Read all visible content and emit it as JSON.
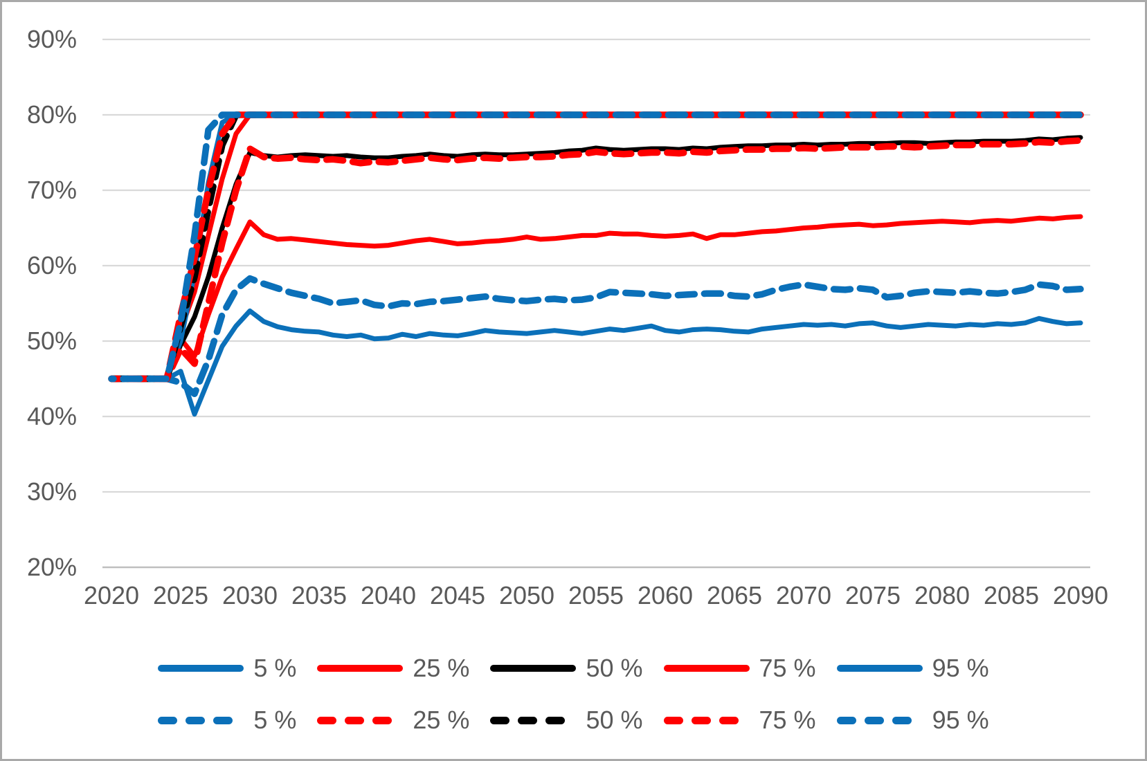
{
  "chart_data": {
    "type": "line",
    "title": "",
    "xlabel": "",
    "ylabel": "",
    "grid": true,
    "y_format": "percent",
    "ylim": [
      20,
      90
    ],
    "xlim": [
      2020,
      2090
    ],
    "axes": {
      "y_tick_labels": [
        "90%",
        "80%",
        "70%",
        "60%",
        "50%",
        "40%",
        "30%",
        "20%"
      ],
      "y_tick_values": [
        90,
        80,
        70,
        60,
        50,
        40,
        30,
        20
      ],
      "x_tick_labels": [
        "2020",
        "2025",
        "2030",
        "2035",
        "2040",
        "2045",
        "2050",
        "2055",
        "2060",
        "2065",
        "2070",
        "2075",
        "2080",
        "2085",
        "2090"
      ],
      "x_tick_values": [
        2020,
        2025,
        2030,
        2035,
        2040,
        2045,
        2050,
        2055,
        2060,
        2065,
        2070,
        2075,
        2080,
        2085,
        2090
      ]
    },
    "x_years_start": 2020,
    "x_years_end": 2090,
    "x_step": 1,
    "series": [
      {
        "name": "5 % solid",
        "percentile": "5 %",
        "style": "solid",
        "color": "#0B70B9",
        "values": [
          45,
          45,
          45,
          45,
          45,
          46,
          40.3,
          44.8,
          49.3,
          52,
          54,
          52.6,
          51.9,
          51.5,
          51.3,
          51.2,
          50.8,
          50.6,
          50.8,
          50.3,
          50.4,
          50.9,
          50.6,
          51,
          50.8,
          50.7,
          51,
          51.4,
          51.2,
          51.1,
          51,
          51.2,
          51.4,
          51.2,
          51,
          51.3,
          51.6,
          51.4,
          51.7,
          52,
          51.4,
          51.2,
          51.5,
          51.6,
          51.5,
          51.3,
          51.2,
          51.6,
          51.8,
          52,
          52.2,
          52.1,
          52.2,
          52,
          52.3,
          52.4,
          52,
          51.8,
          52,
          52.2,
          52.1,
          52,
          52.2,
          52.1,
          52.3,
          52.2,
          52.4,
          53,
          52.6,
          52.3,
          52.4
        ]
      },
      {
        "name": "25 % solid",
        "percentile": "25 %",
        "style": "solid",
        "color": "#FF0000",
        "values": [
          45,
          45,
          45,
          45,
          45,
          50.3,
          48,
          53.5,
          58.5,
          62.2,
          65.8,
          64.1,
          63.5,
          63.6,
          63.4,
          63.2,
          63,
          62.8,
          62.7,
          62.6,
          62.7,
          63,
          63.3,
          63.5,
          63.2,
          62.9,
          63,
          63.2,
          63.3,
          63.5,
          63.8,
          63.5,
          63.6,
          63.8,
          64,
          64,
          64.3,
          64.2,
          64.2,
          64,
          63.9,
          64,
          64.2,
          63.6,
          64.1,
          64.1,
          64.3,
          64.5,
          64.6,
          64.8,
          65,
          65.1,
          65.3,
          65.4,
          65.5,
          65.3,
          65.4,
          65.6,
          65.7,
          65.8,
          65.9,
          65.8,
          65.7,
          65.9,
          66,
          65.9,
          66.1,
          66.3,
          66.2,
          66.4,
          66.5
        ]
      },
      {
        "name": "50 % solid",
        "percentile": "50 %",
        "style": "solid",
        "color": "#000000",
        "values": [
          45,
          45,
          45,
          45,
          45,
          49.5,
          53.2,
          58.5,
          65,
          70.8,
          75,
          74.6,
          74.4,
          74.6,
          74.7,
          74.6,
          74.5,
          74.6,
          74.4,
          74.3,
          74.3,
          74.5,
          74.6,
          74.8,
          74.6,
          74.5,
          74.7,
          74.8,
          74.7,
          74.7,
          74.8,
          74.9,
          75,
          75.2,
          75.3,
          75.6,
          75.4,
          75.3,
          75.4,
          75.5,
          75.5,
          75.4,
          75.6,
          75.5,
          75.7,
          75.8,
          75.9,
          75.9,
          76,
          76,
          76.1,
          76,
          76.1,
          76.1,
          76.2,
          76.2,
          76.2,
          76.3,
          76.3,
          76.2,
          76.3,
          76.4,
          76.4,
          76.5,
          76.5,
          76.5,
          76.6,
          76.8,
          76.7,
          76.9,
          77
        ]
      },
      {
        "name": "75 % solid",
        "percentile": "75 %",
        "style": "solid",
        "color": "#FF0000",
        "values": [
          45,
          45,
          45,
          45,
          45,
          51.5,
          56.5,
          64,
          71.5,
          77.5,
          80,
          80,
          80,
          80,
          80,
          80,
          80,
          80,
          80,
          80,
          80,
          80,
          80,
          80,
          80,
          80,
          80,
          80,
          80,
          80,
          80,
          80,
          80,
          80,
          80,
          80,
          80,
          80,
          80,
          80,
          80,
          80,
          80,
          80,
          80,
          80,
          80,
          80,
          80,
          80,
          80,
          80,
          80,
          80,
          80,
          80,
          80,
          80,
          80,
          80,
          80,
          80,
          80,
          80,
          80,
          80,
          80,
          80,
          80,
          80,
          80
        ]
      },
      {
        "name": "95 % solid",
        "percentile": "95 %",
        "style": "solid",
        "color": "#0B70B9",
        "values": [
          45,
          45,
          45,
          45,
          45,
          50,
          59,
          71,
          79,
          80,
          80,
          80,
          80,
          80,
          80,
          80,
          80,
          80,
          80,
          80,
          80,
          80,
          80,
          80,
          80,
          80,
          80,
          80,
          80,
          80,
          80,
          80,
          80,
          80,
          80,
          80,
          80,
          80,
          80,
          80,
          80,
          80,
          80,
          80,
          80,
          80,
          80,
          80,
          80,
          80,
          80,
          80,
          80,
          80,
          80,
          80,
          80,
          80,
          80,
          80,
          80,
          80,
          80,
          80,
          80,
          80,
          80,
          80,
          80,
          80,
          80
        ]
      },
      {
        "name": "5 % dashed",
        "percentile": "5 %",
        "style": "dashed",
        "color": "#0B70B9",
        "values": [
          45,
          45,
          45,
          45,
          45,
          44.5,
          43,
          47.5,
          53.5,
          56.8,
          58.3,
          57.6,
          57,
          56.4,
          56,
          55.6,
          55,
          55.2,
          55.4,
          54.8,
          54.6,
          55,
          54.9,
          55.2,
          55.3,
          55.5,
          55.7,
          55.9,
          55.6,
          55.4,
          55.3,
          55.5,
          55.6,
          55.4,
          55.5,
          55.8,
          56.5,
          56.4,
          56.3,
          56.2,
          56,
          56.1,
          56.2,
          56.3,
          56.3,
          56,
          55.9,
          56.2,
          56.8,
          57.2,
          57.5,
          57.2,
          56.9,
          56.8,
          57,
          56.8,
          55.8,
          56,
          56.4,
          56.6,
          56.5,
          56.4,
          56.6,
          56.4,
          56.3,
          56.5,
          56.8,
          57.5,
          57.3,
          56.8,
          56.9
        ]
      },
      {
        "name": "25 % dashed",
        "percentile": "25 %",
        "style": "dashed",
        "color": "#FF0000",
        "values": [
          45,
          45,
          45,
          45,
          45,
          49,
          47,
          55,
          63,
          70,
          75.5,
          74.4,
          74.2,
          74.3,
          74.1,
          74,
          74.1,
          73.9,
          73.6,
          73.8,
          73.7,
          73.9,
          74.1,
          74.3,
          74.1,
          74,
          74.2,
          74.3,
          74.2,
          74.3,
          74.4,
          74.4,
          74.5,
          74.7,
          74.8,
          75.1,
          74.9,
          74.8,
          74.9,
          75,
          75,
          74.9,
          75.1,
          75,
          75.2,
          75.3,
          75.4,
          75.4,
          75.5,
          75.5,
          75.6,
          75.5,
          75.6,
          75.7,
          75.7,
          75.7,
          75.8,
          75.8,
          75.7,
          75.8,
          75.9,
          76,
          76,
          76.1,
          76.1,
          76.1,
          76.2,
          76.4,
          76.3,
          76.5,
          76.6
        ]
      },
      {
        "name": "50 % dashed",
        "percentile": "50 %",
        "style": "dashed",
        "color": "#000000",
        "values": [
          45,
          45,
          45,
          45,
          45,
          52,
          58.5,
          67.5,
          76,
          80,
          80,
          80,
          80,
          80,
          80,
          80,
          80,
          80,
          80,
          80,
          80,
          80,
          80,
          80,
          80,
          80,
          80,
          80,
          80,
          80,
          80,
          80,
          80,
          80,
          80,
          80,
          80,
          80,
          80,
          80,
          80,
          80,
          80,
          80,
          80,
          80,
          80,
          80,
          80,
          80,
          80,
          80,
          80,
          80,
          80,
          80,
          80,
          80,
          80,
          80,
          80,
          80,
          80,
          80,
          80,
          80,
          80,
          80,
          80,
          80,
          80
        ]
      },
      {
        "name": "75 % dashed",
        "percentile": "75 %",
        "style": "dashed",
        "color": "#FF0000",
        "values": [
          45,
          45,
          45,
          45,
          45,
          53.5,
          61,
          70,
          77.5,
          80,
          80,
          80,
          80,
          80,
          80,
          80,
          80,
          80,
          80,
          80,
          80,
          80,
          80,
          80,
          80,
          80,
          80,
          80,
          80,
          80,
          80,
          80,
          80,
          80,
          80,
          80,
          80,
          80,
          80,
          80,
          80,
          80,
          80,
          80,
          80,
          80,
          80,
          80,
          80,
          80,
          80,
          80,
          80,
          80,
          80,
          80,
          80,
          80,
          80,
          80,
          80,
          80,
          80,
          80,
          80,
          80,
          80,
          80,
          80,
          80,
          80
        ]
      },
      {
        "name": "95 % dashed",
        "percentile": "95 %",
        "style": "dashed",
        "color": "#0B70B9",
        "values": [
          45,
          45,
          45,
          45,
          45,
          52.5,
          64,
          78,
          80,
          80,
          80,
          80,
          80,
          80,
          80,
          80,
          80,
          80,
          80,
          80,
          80,
          80,
          80,
          80,
          80,
          80,
          80,
          80,
          80,
          80,
          80,
          80,
          80,
          80,
          80,
          80,
          80,
          80,
          80,
          80,
          80,
          80,
          80,
          80,
          80,
          80,
          80,
          80,
          80,
          80,
          80,
          80,
          80,
          80,
          80,
          80,
          80,
          80,
          80,
          80,
          80,
          80,
          80,
          80,
          80,
          80,
          80,
          80,
          80,
          80,
          80
        ]
      }
    ],
    "legend": {
      "position": "bottom",
      "rows": [
        {
          "style": "solid",
          "items": [
            {
              "label": "5 %",
              "color": "#0B70B9"
            },
            {
              "label": "25 %",
              "color": "#FF0000"
            },
            {
              "label": "50 %",
              "color": "#000000"
            },
            {
              "label": "75 %",
              "color": "#FF0000"
            },
            {
              "label": "95 %",
              "color": "#0B70B9"
            }
          ]
        },
        {
          "style": "dashed",
          "items": [
            {
              "label": "5 %",
              "color": "#0B70B9"
            },
            {
              "label": "25 %",
              "color": "#FF0000"
            },
            {
              "label": "50 %",
              "color": "#000000"
            },
            {
              "label": "75 %",
              "color": "#FF0000"
            },
            {
              "label": "95 %",
              "color": "#0B70B9"
            }
          ]
        }
      ]
    }
  },
  "colors": {
    "blue": "#0B70B9",
    "red": "#FF0000",
    "black": "#000000",
    "tick_text": "#595959",
    "gridline": "#D9D9D9",
    "axis_line": "#BFBFBF",
    "border": "#A9A9A9",
    "background": "#FFFFFF"
  }
}
